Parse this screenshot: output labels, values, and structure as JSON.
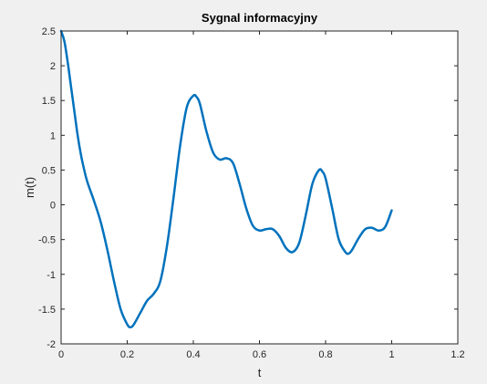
{
  "figure": {
    "background": "#f0f0f0",
    "axes_background": "#ffffff",
    "line_color": "#0072bd",
    "axis_color": "#262626"
  },
  "chart_data": {
    "type": "line",
    "title": "Sygnal informacyjny",
    "xlabel": "t",
    "ylabel": "m(t)",
    "xlim": [
      0,
      1.2
    ],
    "ylim": [
      -2,
      2.5
    ],
    "xticks": [
      0,
      0.2,
      0.4,
      0.6,
      0.8,
      1,
      1.2
    ],
    "xtick_labels": [
      "0",
      "0.2",
      "0.4",
      "0.6",
      "0.8",
      "1",
      "1.2"
    ],
    "yticks": [
      -2,
      -1.5,
      -1,
      -0.5,
      0,
      0.5,
      1,
      1.5,
      2,
      2.5
    ],
    "ytick_labels": [
      "-2",
      "-1.5",
      "-1",
      "-0.5",
      "0",
      "0.5",
      "1",
      "1.5",
      "2",
      "2.5"
    ],
    "grid": false,
    "legend": "none",
    "series": [
      {
        "x": [
          0,
          0.01,
          0.02,
          0.03,
          0.04,
          0.05,
          0.06,
          0.07,
          0.08,
          0.1,
          0.12,
          0.14,
          0.16,
          0.18,
          0.2,
          0.21,
          0.22,
          0.24,
          0.26,
          0.28,
          0.3,
          0.32,
          0.34,
          0.36,
          0.38,
          0.4,
          0.41,
          0.42,
          0.44,
          0.46,
          0.48,
          0.5,
          0.52,
          0.54,
          0.56,
          0.58,
          0.6,
          0.62,
          0.64,
          0.66,
          0.68,
          0.7,
          0.72,
          0.74,
          0.76,
          0.78,
          0.79,
          0.8,
          0.82,
          0.84,
          0.86,
          0.87,
          0.88,
          0.9,
          0.92,
          0.94,
          0.96,
          0.98,
          1.0
        ],
        "y": [
          2.5,
          2.35,
          2.05,
          1.7,
          1.35,
          1.0,
          0.72,
          0.5,
          0.32,
          0.05,
          -0.25,
          -0.65,
          -1.1,
          -1.5,
          -1.72,
          -1.76,
          -1.72,
          -1.55,
          -1.38,
          -1.28,
          -1.1,
          -0.6,
          0.1,
          0.85,
          1.4,
          1.57,
          1.55,
          1.45,
          1.05,
          0.75,
          0.65,
          0.67,
          0.6,
          0.3,
          -0.05,
          -0.3,
          -0.37,
          -0.35,
          -0.35,
          -0.45,
          -0.62,
          -0.68,
          -0.55,
          -0.15,
          0.3,
          0.5,
          0.48,
          0.38,
          -0.05,
          -0.5,
          -0.68,
          -0.7,
          -0.65,
          -0.48,
          -0.35,
          -0.33,
          -0.37,
          -0.32,
          -0.08
        ]
      }
    ]
  }
}
